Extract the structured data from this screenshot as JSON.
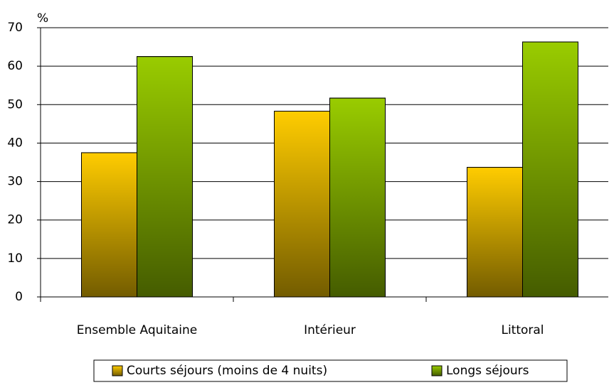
{
  "chart_data": {
    "type": "bar",
    "y_unit": "%",
    "categories": [
      "Ensemble Aquitaine",
      "Intérieur",
      "Littoral"
    ],
    "series": [
      {
        "name": "Courts séjours (moins de 4 nuits)",
        "color": "#ffcc00",
        "values": [
          37.5,
          48.3,
          33.7
        ]
      },
      {
        "name": "Longs séjours",
        "color": "#99cc00",
        "values": [
          62.5,
          51.7,
          66.3
        ]
      }
    ],
    "ylim": [
      0,
      70
    ],
    "yticks": [
      0,
      10,
      20,
      30,
      40,
      50,
      60,
      70
    ],
    "grid": true,
    "legend": "bottom"
  }
}
